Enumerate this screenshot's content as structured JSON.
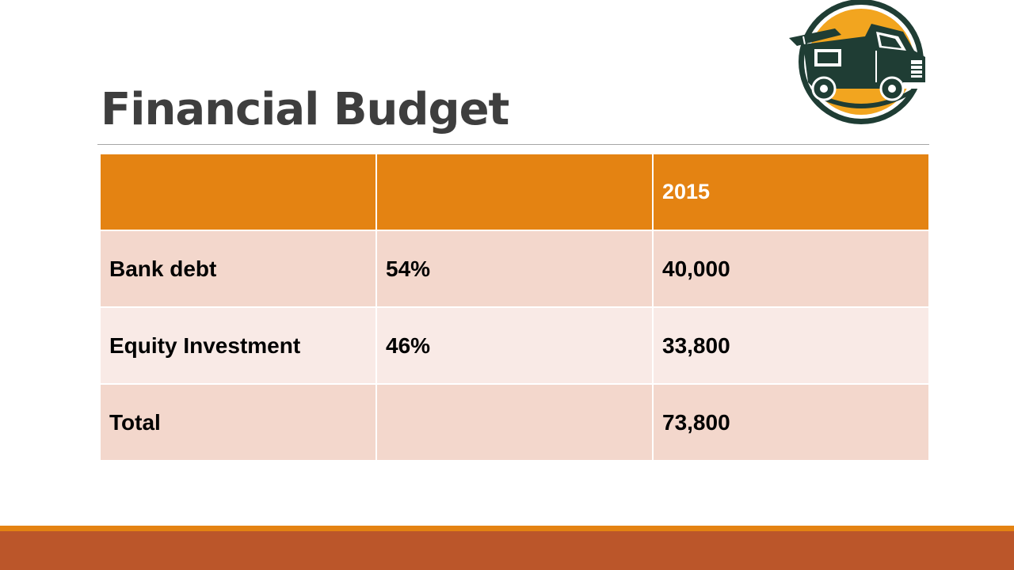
{
  "slide": {
    "title": "Financial Budget"
  },
  "table": {
    "header": [
      "",
      "",
      "2015"
    ],
    "rows": [
      {
        "label": "Bank debt",
        "percent": "54%",
        "amount": "40,000"
      },
      {
        "label": "Equity Investment",
        "percent": "46%",
        "amount": "33,800"
      },
      {
        "label": "Total",
        "percent": "",
        "amount": "73,800"
      }
    ]
  },
  "colors": {
    "accent_orange": "#e48312",
    "bottom_bar": "#bb562a",
    "row_dark": "#f3d7cc",
    "row_light": "#f9eae6",
    "title_text": "#3e3e3e",
    "logo_green": "#1f3d34"
  },
  "logo": {
    "icon": "food-truck-icon"
  }
}
